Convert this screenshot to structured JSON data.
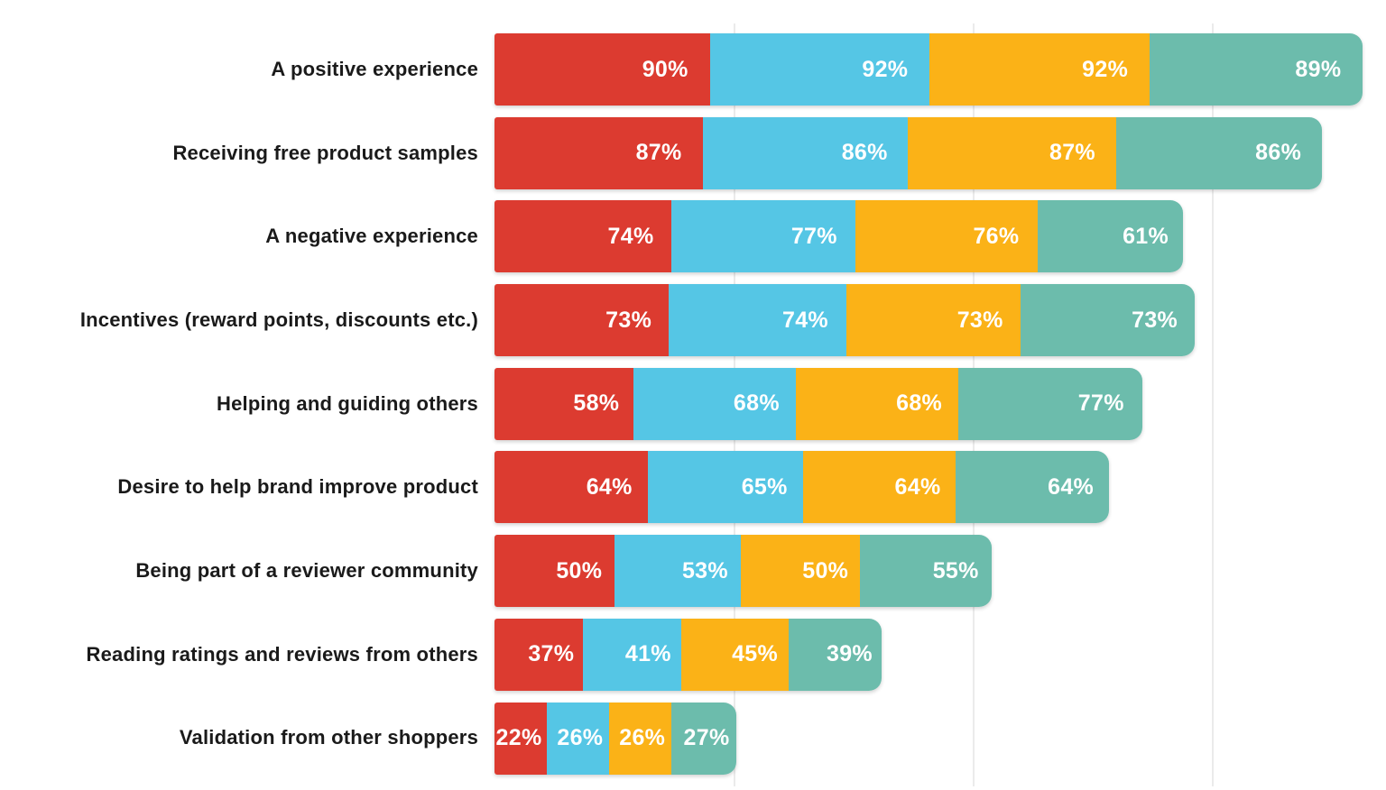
{
  "chart_data": {
    "type": "bar",
    "variant": "horizontal-stacked",
    "title": "",
    "xlabel": "",
    "ylabel": "",
    "legend": "none",
    "grid": "vertical-light-gridlines",
    "gridline_color": "#ebebeb",
    "x_gridlines": [
      100,
      200,
      300
    ],
    "xlim": [
      0,
      373
    ],
    "value_suffix": "%",
    "label_color": "#1a1a1a",
    "value_label_color": "#ffffff",
    "categories": [
      "A positive experience",
      "Receiving free product samples",
      "A negative experience",
      "Incentives (reward points, discounts etc.)",
      "Helping and guiding others",
      "Desire to help brand improve product",
      "Being part of a reviewer community",
      "Reading ratings and reviews from others",
      "Validation from other shoppers"
    ],
    "series": [
      {
        "name": "segment-1-red",
        "color": "#dc3b30",
        "values": [
          90,
          87,
          74,
          73,
          58,
          64,
          50,
          37,
          22
        ]
      },
      {
        "name": "segment-2-blue",
        "color": "#55c6e5",
        "values": [
          92,
          86,
          77,
          74,
          68,
          65,
          53,
          41,
          26
        ]
      },
      {
        "name": "segment-3-yellow",
        "color": "#fbb217",
        "values": [
          92,
          87,
          76,
          73,
          68,
          64,
          50,
          45,
          26
        ]
      },
      {
        "name": "segment-4-teal",
        "color": "#6cbcac",
        "values": [
          89,
          86,
          61,
          73,
          77,
          64,
          55,
          39,
          27
        ]
      }
    ]
  }
}
